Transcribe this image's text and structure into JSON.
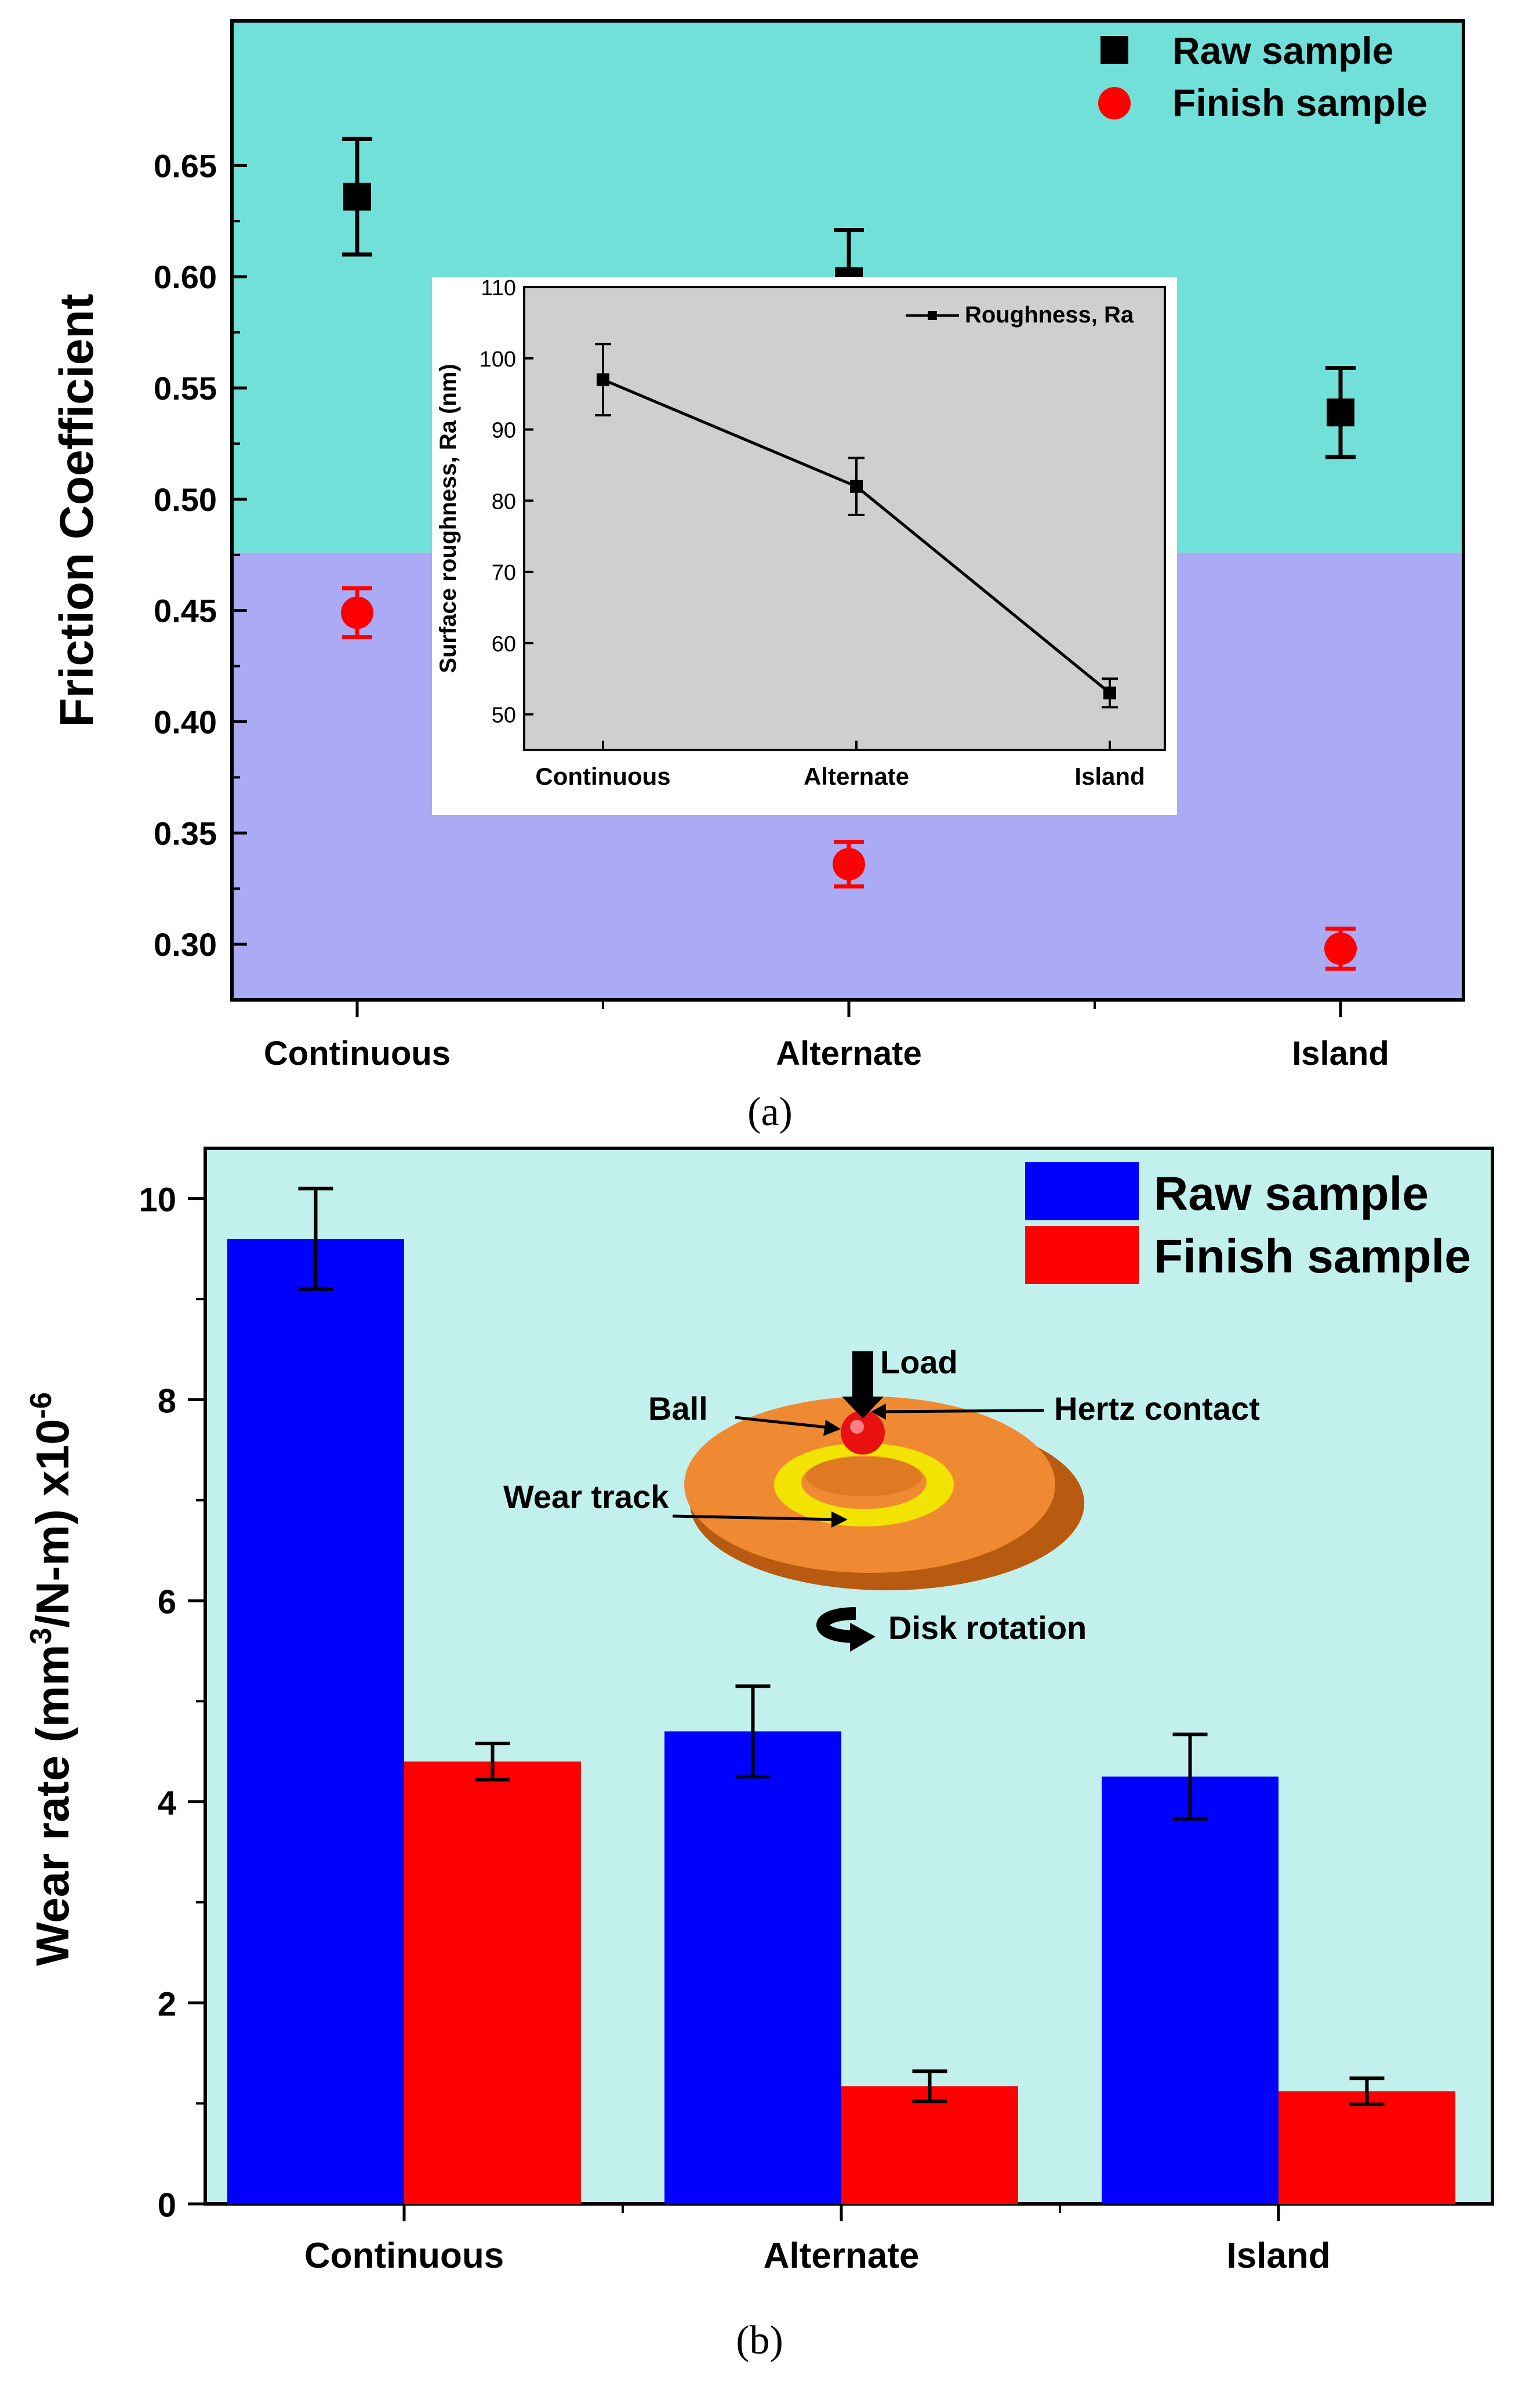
{
  "chart_data": [
    {
      "panel": "(a)",
      "type": "scatter",
      "categories": [
        "Continuous",
        "Alternate",
        "Island"
      ],
      "ylabel": "Friction Coefficient",
      "ylim": [
        0.275,
        0.715
      ],
      "yticks": [
        "0.30",
        "0.35",
        "0.40",
        "0.45",
        "0.50",
        "0.55",
        "0.60",
        "0.65"
      ],
      "legend_position": "top-right",
      "series": [
        {
          "name": "Raw sample",
          "marker": "square",
          "color": "#000000",
          "values": [
            0.636,
            0.598,
            0.539
          ],
          "errors": [
            0.026,
            0.023,
            0.02
          ]
        },
        {
          "name": "Finish sample",
          "marker": "circle",
          "color": "#ff0000",
          "values": [
            0.449,
            0.336,
            0.298
          ],
          "errors": [
            0.011,
            0.01,
            0.009
          ]
        }
      ],
      "background_bands": [
        {
          "from": 0.476,
          "to": 0.715,
          "color": "#71e0d8"
        },
        {
          "from": 0.275,
          "to": 0.476,
          "color": "#aaaaf5"
        }
      ],
      "inset": {
        "type": "line",
        "categories": [
          "Continuous",
          "Alternate",
          "Island"
        ],
        "ylabel": "Surface roughness, Ra (nm)",
        "ylim": [
          45,
          110
        ],
        "yticks": [
          "50",
          "60",
          "70",
          "80",
          "90",
          "100",
          "110"
        ],
        "legend": "Roughness, Ra",
        "values": [
          97,
          82,
          53
        ],
        "errors": [
          5,
          4,
          2
        ]
      }
    },
    {
      "panel": "(b)",
      "type": "bar",
      "categories": [
        "Continuous",
        "Alternate",
        "Island"
      ],
      "ylabel_main": "Wear rate (mm",
      "ylabel_sup1": "3",
      "ylabel_mid": "/N-m) x10",
      "ylabel_sup2": "-6",
      "ylim": [
        0,
        10.5
      ],
      "yticks": [
        "0",
        "2",
        "4",
        "6",
        "8",
        "10"
      ],
      "legend_position": "top-right",
      "series": [
        {
          "name": "Raw sample",
          "color": "#0000ff",
          "values": [
            9.6,
            4.7,
            4.25
          ],
          "errors": [
            0.5,
            0.45,
            0.42
          ]
        },
        {
          "name": "Finish sample",
          "color": "#ff0000",
          "values": [
            4.4,
            1.17,
            1.12
          ],
          "errors": [
            0.18,
            0.15,
            0.13
          ]
        }
      ],
      "diagram_labels": {
        "load": "Load",
        "ball": "Ball",
        "hertz": "Hertz contact",
        "wear_track": "Wear track",
        "disk_rotation": "Disk rotation"
      }
    }
  ],
  "captions": {
    "a": "(a)",
    "b": "(b)"
  }
}
